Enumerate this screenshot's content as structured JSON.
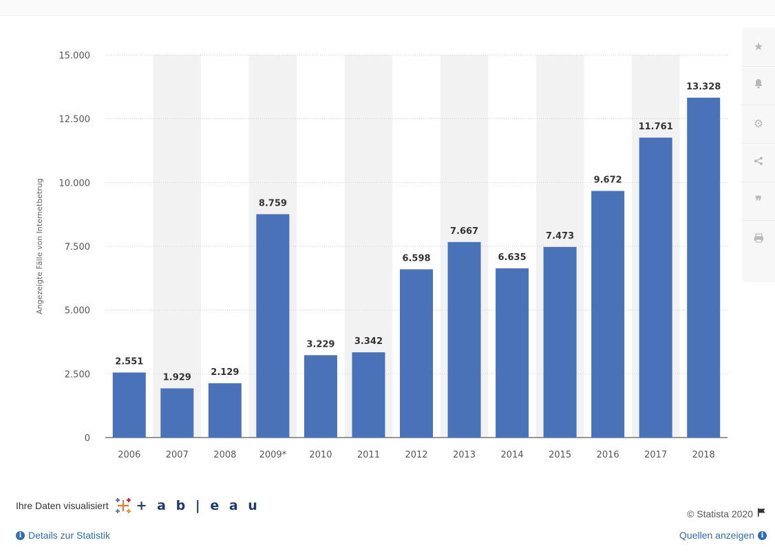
{
  "chart_data": {
    "type": "bar",
    "categories": [
      "2006",
      "2007",
      "2008",
      "2009*",
      "2010",
      "2011",
      "2012",
      "2013",
      "2014",
      "2015",
      "2016",
      "2017",
      "2018"
    ],
    "values": [
      2551,
      1929,
      2129,
      8759,
      3229,
      3342,
      6598,
      7667,
      6635,
      7473,
      9672,
      11761,
      13328
    ],
    "value_labels": [
      "2.551",
      "1.929",
      "2.129",
      "8.759",
      "3.229",
      "3.342",
      "6.598",
      "7.667",
      "6.635",
      "7.473",
      "9.672",
      "11.761",
      "13.328"
    ],
    "yticks": [
      0,
      2500,
      5000,
      7500,
      10000,
      12500,
      15000
    ],
    "ytick_labels": [
      "0",
      "2.500",
      "5.000",
      "7.500",
      "10.000",
      "12.500",
      "15.000"
    ],
    "ylabel": "Angezeigte Fälle von Internetbetrug",
    "xlabel": "",
    "ylim": [
      0,
      15000
    ],
    "grid": true,
    "bar_color": "#4a72b8"
  },
  "toolbar": {
    "icons": [
      "star-icon",
      "bell-icon",
      "gear-icon",
      "share-icon",
      "quote-icon",
      "print-icon"
    ]
  },
  "footer": {
    "tableau_prefix": "Ihre Daten visualisiert",
    "tableau_word": "+ a b | e a u",
    "copyright": "© Statista 2020",
    "details_link": "Details zur Statistik",
    "sources_link": "Quellen anzeigen"
  }
}
